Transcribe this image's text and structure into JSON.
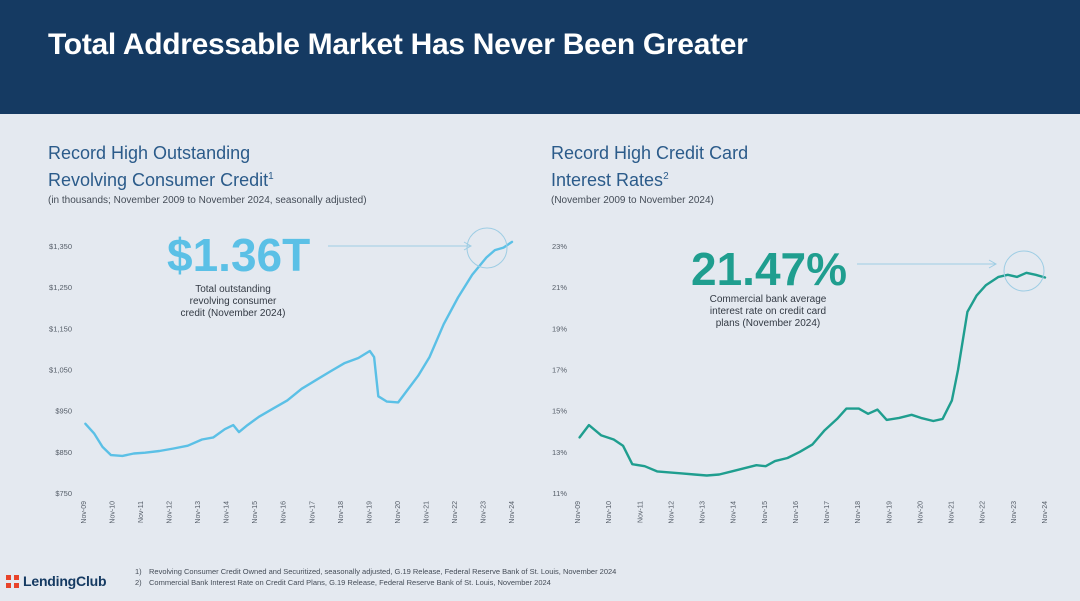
{
  "header": {
    "title": "Total Addressable Market Has Never Been Greater"
  },
  "left": {
    "title_line1": "Record High Outstanding",
    "title_line2": "Revolving Consumer Credit",
    "title_sup": "1",
    "subtitle": "(in thousands; November 2009 to November 2024, seasonally adjusted)",
    "big_value": "$1.36T",
    "callout_line1": "Total outstanding",
    "callout_line2": "revolving consumer",
    "callout_line3": "credit (November 2024)"
  },
  "right": {
    "title_line1": "Record High Credit Card",
    "title_line2": "Interest Rates",
    "title_sup": "2",
    "subtitle": "(November 2009 to November 2024)",
    "big_value": "21.47%",
    "callout_line1": "Commercial bank average",
    "callout_line2": "interest rate on credit card",
    "callout_line3": "plans (November 2024)"
  },
  "chart_data": [
    {
      "type": "line",
      "color": "#5bc0e6",
      "x": [
        "Nov-09",
        "Nov-10",
        "Nov-11",
        "Nov-12",
        "Nov-13",
        "Nov-14",
        "Nov-15",
        "Nov-16",
        "Nov-17",
        "Nov-18",
        "Nov-19",
        "Nov-20",
        "Nov-21",
        "Nov-22",
        "Nov-23",
        "Nov-24"
      ],
      "y_ticks": [
        "$750",
        "$850",
        "$950",
        "$1,050",
        "$1,150",
        "$1,250",
        "$1,350"
      ],
      "ylim": [
        750,
        1350
      ],
      "points": [
        [
          2009.9,
          918
        ],
        [
          2010.2,
          895
        ],
        [
          2010.5,
          862
        ],
        [
          2010.8,
          842
        ],
        [
          2011.2,
          840
        ],
        [
          2011.6,
          846
        ],
        [
          2012.0,
          848
        ],
        [
          2012.5,
          852
        ],
        [
          2013.0,
          858
        ],
        [
          2013.5,
          865
        ],
        [
          2014.0,
          880
        ],
        [
          2014.4,
          885
        ],
        [
          2014.8,
          905
        ],
        [
          2015.1,
          915
        ],
        [
          2015.3,
          898
        ],
        [
          2015.6,
          915
        ],
        [
          2016.0,
          935
        ],
        [
          2016.5,
          955
        ],
        [
          2017.0,
          975
        ],
        [
          2017.5,
          1003
        ],
        [
          2018.0,
          1024
        ],
        [
          2018.5,
          1045
        ],
        [
          2019.0,
          1065
        ],
        [
          2019.5,
          1078
        ],
        [
          2019.9,
          1095
        ],
        [
          2020.05,
          1080
        ],
        [
          2020.2,
          985
        ],
        [
          2020.5,
          972
        ],
        [
          2020.9,
          970
        ],
        [
          2021.2,
          998
        ],
        [
          2021.6,
          1035
        ],
        [
          2022.0,
          1080
        ],
        [
          2022.5,
          1160
        ],
        [
          2023.0,
          1225
        ],
        [
          2023.5,
          1280
        ],
        [
          2024.0,
          1322
        ],
        [
          2024.3,
          1340
        ],
        [
          2024.6,
          1346
        ],
        [
          2024.9,
          1360
        ]
      ]
    },
    {
      "type": "line",
      "color": "#1f9e8f",
      "x": [
        "Nov-09",
        "Nov-10",
        "Nov-11",
        "Nov-12",
        "Nov-13",
        "Nov-14",
        "Nov-15",
        "Nov-16",
        "Nov-17",
        "Nov-18",
        "Nov-19",
        "Nov-20",
        "Nov-21",
        "Nov-22",
        "Nov-23",
        "Nov-24"
      ],
      "y_ticks": [
        "11%",
        "13%",
        "15%",
        "17%",
        "19%",
        "21%",
        "23%"
      ],
      "ylim": [
        11,
        23
      ],
      "points": [
        [
          2009.9,
          13.7
        ],
        [
          2010.2,
          14.3
        ],
        [
          2010.6,
          13.8
        ],
        [
          2011.0,
          13.6
        ],
        [
          2011.3,
          13.3
        ],
        [
          2011.6,
          12.4
        ],
        [
          2012.0,
          12.3
        ],
        [
          2012.4,
          12.05
        ],
        [
          2012.8,
          12.0
        ],
        [
          2013.2,
          11.95
        ],
        [
          2013.6,
          11.9
        ],
        [
          2014.0,
          11.85
        ],
        [
          2014.4,
          11.9
        ],
        [
          2014.8,
          12.05
        ],
        [
          2015.2,
          12.2
        ],
        [
          2015.6,
          12.35
        ],
        [
          2015.9,
          12.3
        ],
        [
          2016.2,
          12.55
        ],
        [
          2016.6,
          12.7
        ],
        [
          2017.0,
          13.0
        ],
        [
          2017.4,
          13.35
        ],
        [
          2017.8,
          14.05
        ],
        [
          2018.2,
          14.6
        ],
        [
          2018.5,
          15.1
        ],
        [
          2018.9,
          15.1
        ],
        [
          2019.2,
          14.85
        ],
        [
          2019.5,
          15.05
        ],
        [
          2019.8,
          14.55
        ],
        [
          2020.2,
          14.65
        ],
        [
          2020.6,
          14.8
        ],
        [
          2020.9,
          14.65
        ],
        [
          2021.3,
          14.5
        ],
        [
          2021.6,
          14.6
        ],
        [
          2021.9,
          15.5
        ],
        [
          2022.1,
          17.0
        ],
        [
          2022.4,
          19.8
        ],
        [
          2022.7,
          20.6
        ],
        [
          2023.0,
          21.1
        ],
        [
          2023.4,
          21.5
        ],
        [
          2023.7,
          21.6
        ],
        [
          2024.0,
          21.5
        ],
        [
          2024.3,
          21.7
        ],
        [
          2024.6,
          21.6
        ],
        [
          2024.9,
          21.47
        ]
      ]
    }
  ]
}
